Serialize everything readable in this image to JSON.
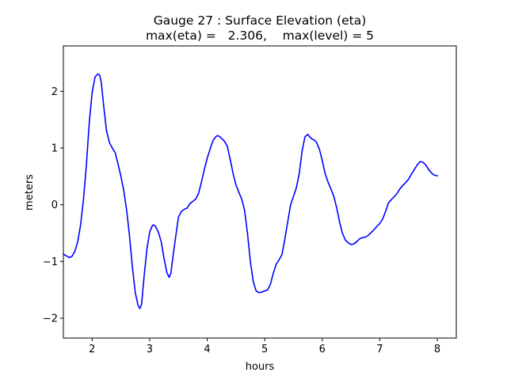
{
  "chart_data": {
    "type": "line",
    "title": "Gauge 27 : Surface Elevation (eta)",
    "subtitle": "max(eta) =   2.306,    max(level) = 5",
    "xlabel": "hours",
    "ylabel": "meters",
    "xlim": [
      1.5,
      8.33
    ],
    "ylim": [
      -2.35,
      2.8
    ],
    "xticks": [
      2,
      3,
      4,
      5,
      6,
      7,
      8
    ],
    "yticks": [
      -2,
      -1,
      0,
      1,
      2
    ],
    "grid": false,
    "line_color": "#0000ff",
    "series": [
      {
        "x": [
          1.5,
          1.55,
          1.6,
          1.65,
          1.7,
          1.75,
          1.8,
          1.85,
          1.9,
          1.95,
          2.0,
          2.05,
          2.1,
          2.13,
          2.16,
          2.2,
          2.25,
          2.3,
          2.35,
          2.4,
          2.45,
          2.5,
          2.55,
          2.6,
          2.65,
          2.7,
          2.75,
          2.8,
          2.83,
          2.86,
          2.9,
          2.95,
          3.0,
          3.05,
          3.08,
          3.11,
          3.15,
          3.2,
          3.25,
          3.3,
          3.34,
          3.37,
          3.4,
          3.45,
          3.5,
          3.55,
          3.6,
          3.65,
          3.7,
          3.75,
          3.8,
          3.85,
          3.9,
          3.95,
          4.0,
          4.05,
          4.1,
          4.15,
          4.18,
          4.22,
          4.26,
          4.3,
          4.35,
          4.4,
          4.45,
          4.5,
          4.55,
          4.6,
          4.65,
          4.7,
          4.75,
          4.8,
          4.85,
          4.9,
          4.95,
          5.0,
          5.05,
          5.1,
          5.15,
          5.2,
          5.25,
          5.3,
          5.35,
          5.4,
          5.45,
          5.5,
          5.55,
          5.6,
          5.65,
          5.7,
          5.75,
          5.78,
          5.82,
          5.86,
          5.9,
          5.95,
          6.0,
          6.05,
          6.1,
          6.15,
          6.2,
          6.25,
          6.3,
          6.35,
          6.4,
          6.45,
          6.5,
          6.55,
          6.6,
          6.65,
          6.7,
          6.75,
          6.8,
          6.85,
          6.9,
          6.95,
          7.0,
          7.05,
          7.1,
          7.15,
          7.2,
          7.25,
          7.3,
          7.35,
          7.4,
          7.45,
          7.5,
          7.55,
          7.6,
          7.65,
          7.7,
          7.75,
          7.8,
          7.85,
          7.9,
          7.95,
          8.0
        ],
        "y": [
          -0.87,
          -0.9,
          -0.93,
          -0.91,
          -0.82,
          -0.65,
          -0.35,
          0.1,
          0.7,
          1.45,
          1.98,
          2.25,
          2.306,
          2.29,
          2.15,
          1.75,
          1.3,
          1.1,
          1.0,
          0.92,
          0.72,
          0.5,
          0.25,
          -0.1,
          -0.55,
          -1.1,
          -1.55,
          -1.78,
          -1.83,
          -1.75,
          -1.3,
          -0.8,
          -0.48,
          -0.36,
          -0.36,
          -0.4,
          -0.48,
          -0.65,
          -0.95,
          -1.2,
          -1.28,
          -1.2,
          -0.95,
          -0.58,
          -0.22,
          -0.12,
          -0.08,
          -0.06,
          0.02,
          0.06,
          0.1,
          0.2,
          0.4,
          0.62,
          0.82,
          0.98,
          1.13,
          1.2,
          1.22,
          1.2,
          1.16,
          1.12,
          1.03,
          0.8,
          0.55,
          0.35,
          0.22,
          0.1,
          -0.1,
          -0.5,
          -1.0,
          -1.35,
          -1.52,
          -1.55,
          -1.54,
          -1.52,
          -1.5,
          -1.4,
          -1.2,
          -1.05,
          -0.97,
          -0.88,
          -0.6,
          -0.3,
          0.0,
          0.15,
          0.3,
          0.55,
          0.95,
          1.2,
          1.24,
          1.2,
          1.16,
          1.14,
          1.1,
          0.98,
          0.78,
          0.55,
          0.4,
          0.28,
          0.15,
          -0.05,
          -0.3,
          -0.5,
          -0.62,
          -0.67,
          -0.7,
          -0.69,
          -0.65,
          -0.6,
          -0.58,
          -0.57,
          -0.54,
          -0.49,
          -0.44,
          -0.38,
          -0.33,
          -0.25,
          -0.12,
          0.03,
          0.09,
          0.14,
          0.2,
          0.28,
          0.34,
          0.39,
          0.45,
          0.54,
          0.62,
          0.7,
          0.76,
          0.75,
          0.7,
          0.62,
          0.56,
          0.52,
          0.51
        ]
      }
    ]
  }
}
